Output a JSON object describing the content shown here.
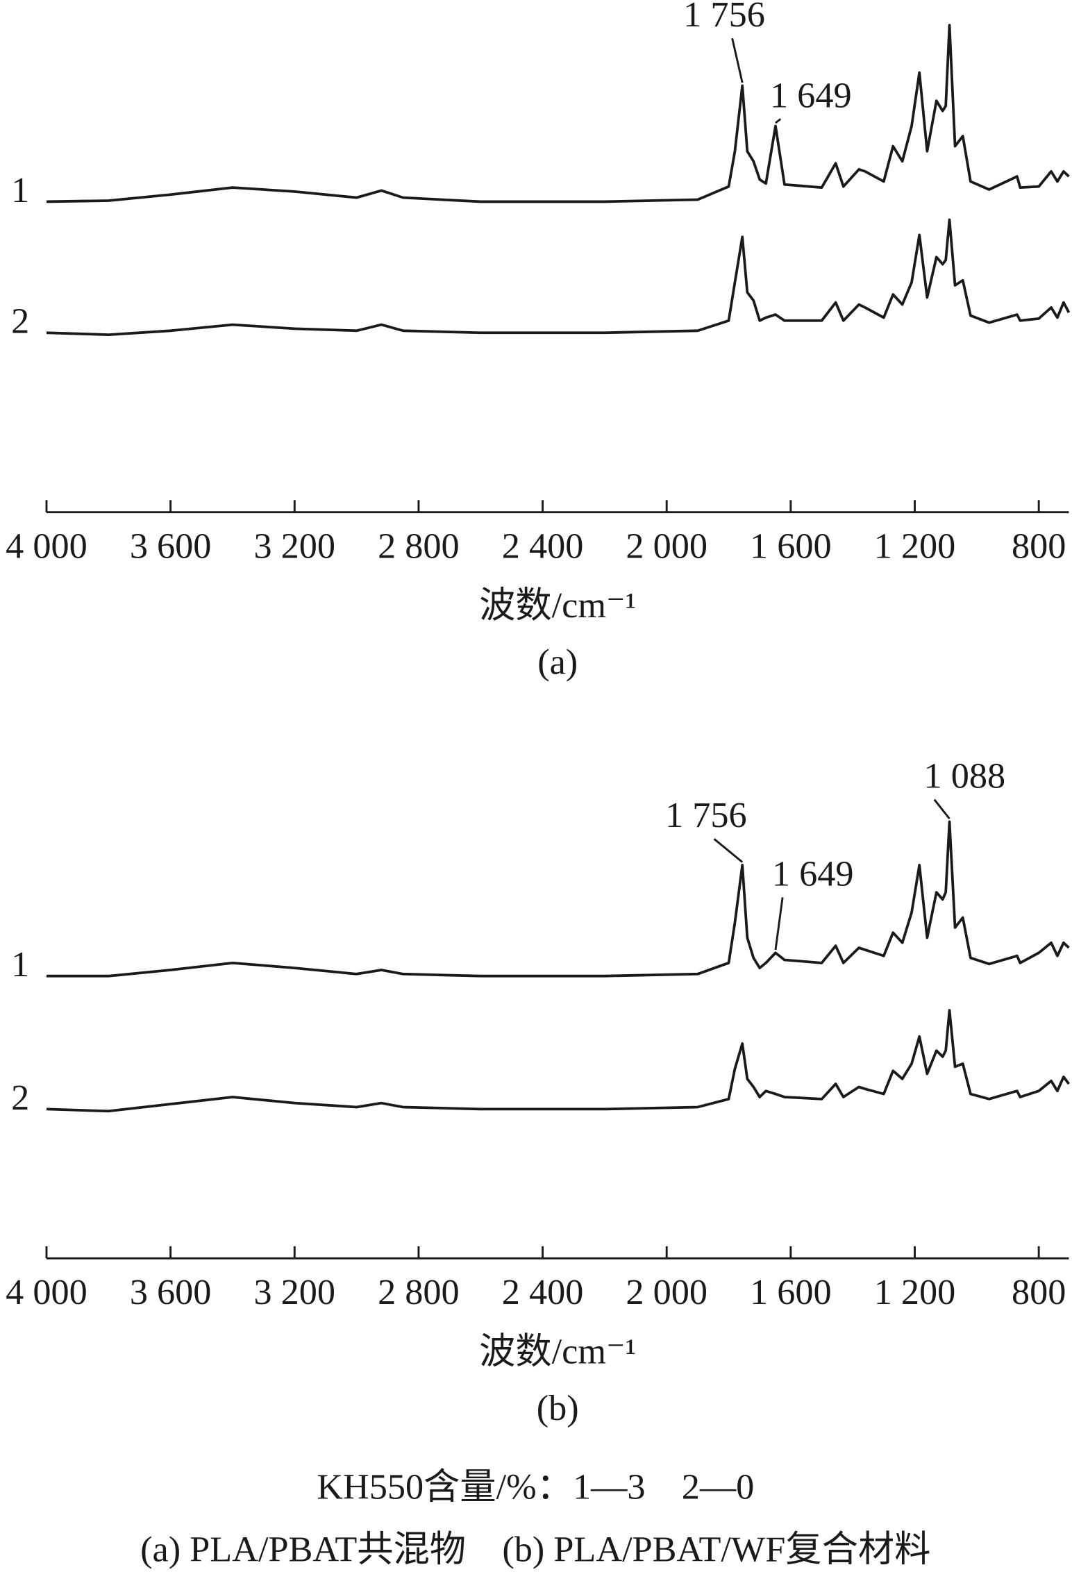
{
  "chart_data": [
    {
      "type": "line",
      "panel_label": "(a)",
      "xlabel": "波数/cm⁻¹",
      "x": [
        4000,
        3800,
        3600,
        3400,
        3200,
        3000,
        2920,
        2850,
        2600,
        2200,
        1900,
        1800,
        1780,
        1756,
        1740,
        1720,
        1700,
        1680,
        1649,
        1620,
        1500,
        1455,
        1430,
        1380,
        1360,
        1300,
        1270,
        1240,
        1210,
        1185,
        1160,
        1130,
        1110,
        1100,
        1088,
        1070,
        1045,
        1020,
        960,
        870,
        860,
        800,
        760,
        740,
        720,
        703
      ],
      "series": [
        {
          "name": "1",
          "color": "#1a1a1a",
          "values": [
            61.6,
            61.8,
            63,
            64.4,
            63.6,
            62.4,
            63.8,
            62.4,
            61.6,
            61.6,
            62,
            64.6,
            71.6,
            84.6,
            71.6,
            69.6,
            66,
            65.2,
            76.6,
            65,
            64.4,
            69.2,
            64.6,
            68,
            67.6,
            65.6,
            72.6,
            69.6,
            76.6,
            87.2,
            71.6,
            81.6,
            79.6,
            80.6,
            96.6,
            72.6,
            74.6,
            65.6,
            64,
            66.6,
            64.4,
            64.6,
            67.6,
            65.6,
            67.6,
            66.6
          ]
        },
        {
          "name": "2",
          "color": "#1a1a1a",
          "values": [
            35.6,
            35.2,
            36,
            37.2,
            36.4,
            36,
            37.2,
            36,
            35.6,
            35.6,
            36,
            38,
            45.6,
            54.6,
            43.6,
            42,
            38,
            38.6,
            39.2,
            38,
            38,
            41.6,
            38,
            41.2,
            40.6,
            38.6,
            43.2,
            41.2,
            45.6,
            55,
            42.6,
            50.6,
            49.2,
            50,
            58,
            45,
            46,
            39,
            37.6,
            39.2,
            38,
            38.4,
            40.6,
            38.6,
            41.6,
            39.6
          ]
        }
      ],
      "annotations": [
        {
          "text": "1 756",
          "x": 1756
        },
        {
          "text": "1 649",
          "x": 1649
        }
      ],
      "xlim": [
        4000,
        703
      ],
      "ylim": [
        0,
        100
      ],
      "xticks": [
        {
          "value": 4000,
          "label": "4 000"
        },
        {
          "value": 3600,
          "label": "3 600"
        },
        {
          "value": 3200,
          "label": "3 200"
        },
        {
          "value": 2800,
          "label": "2 800"
        },
        {
          "value": 2400,
          "label": "2 400"
        },
        {
          "value": 2000,
          "label": "2 000"
        },
        {
          "value": 1600,
          "label": "1 600"
        },
        {
          "value": 1200,
          "label": "1 200"
        },
        800
      ]
    },
    {
      "type": "line",
      "panel_label": "(b)",
      "xlabel": "波数/cm⁻¹",
      "x": [
        4000,
        3800,
        3600,
        3400,
        3200,
        3000,
        2920,
        2850,
        2600,
        2200,
        1900,
        1800,
        1780,
        1756,
        1740,
        1720,
        1700,
        1680,
        1649,
        1620,
        1500,
        1455,
        1430,
        1380,
        1360,
        1300,
        1270,
        1240,
        1210,
        1185,
        1160,
        1130,
        1110,
        1100,
        1088,
        1070,
        1045,
        1020,
        960,
        870,
        860,
        800,
        760,
        740,
        720,
        703
      ],
      "series": [
        {
          "name": "1",
          "color": "#1a1a1a",
          "values": [
            56,
            56,
            57.2,
            58.6,
            57.6,
            56.4,
            57.2,
            56.4,
            56,
            56,
            56.4,
            58.6,
            66.6,
            78,
            63.6,
            59.6,
            57.6,
            58.6,
            60.6,
            59.2,
            58.6,
            62,
            58.6,
            61.6,
            61.2,
            60,
            64.6,
            62.6,
            68.6,
            78,
            63.6,
            72.6,
            71.2,
            72.6,
            86.6,
            65.6,
            67.6,
            59.6,
            58.4,
            60,
            58.6,
            60.6,
            62.6,
            60,
            62.6,
            61.6
          ]
        },
        {
          "name": "2",
          "color": "#1a1a1a",
          "values": [
            29.6,
            29.2,
            30.6,
            32,
            30.8,
            30,
            30.8,
            30,
            29.6,
            29.6,
            30,
            31.6,
            37.6,
            42.6,
            35.6,
            34,
            32,
            33.2,
            32.6,
            32,
            31.6,
            34.6,
            32,
            34,
            33.6,
            32.6,
            37.2,
            35.6,
            38.6,
            44,
            36.6,
            41.2,
            40,
            41.2,
            49.2,
            38,
            38.6,
            32.6,
            31.6,
            33.2,
            32,
            33.2,
            35.2,
            33.2,
            36,
            34.6
          ]
        }
      ],
      "annotations": [
        {
          "text": "1 756",
          "x": 1756
        },
        {
          "text": "1 649",
          "x": 1649
        },
        {
          "text": "1 088",
          "x": 1088
        }
      ],
      "xlim": [
        4000,
        703
      ],
      "ylim": [
        0,
        100
      ],
      "xticks": [
        {
          "value": 4000,
          "label": "4 000"
        },
        {
          "value": 3600,
          "label": "3 600"
        },
        {
          "value": 3200,
          "label": "3 200"
        },
        {
          "value": 2800,
          "label": "2 800"
        },
        {
          "value": 2400,
          "label": "2 400"
        },
        {
          "value": 2000,
          "label": "2 000"
        },
        {
          "value": 1600,
          "label": "1 600"
        },
        {
          "value": 1200,
          "label": "1 200"
        },
        800
      ]
    }
  ],
  "figure_notes": [
    "KH550含量/%：1—3　2—0",
    "(a) PLA/PBAT共混物　(b) PLA/PBAT/WF复合材料"
  ]
}
